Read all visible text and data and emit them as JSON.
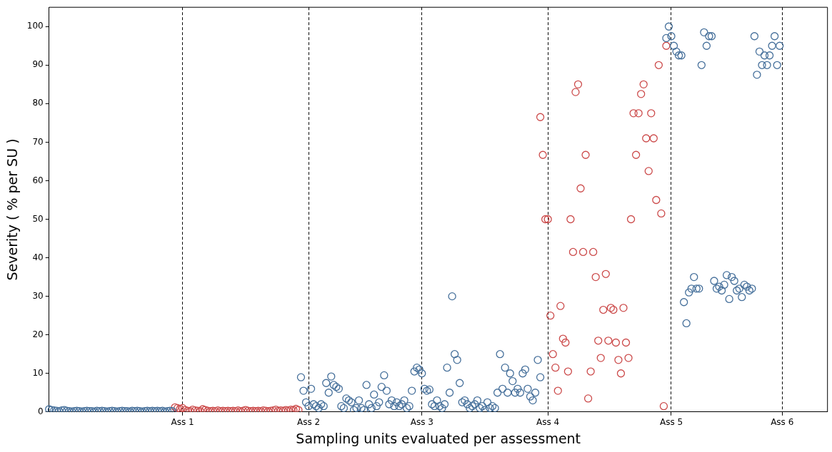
{
  "chart_data": {
    "type": "scatter",
    "xlabel": "Sampling units evaluated per assessment",
    "ylabel": "Severity ( % per SU )",
    "categories": [
      null,
      null,
      null,
      null,
      null,
      null,
      null,
      null,
      null,
      null,
      null,
      null,
      null,
      null,
      null,
      null,
      null,
      null,
      null,
      null,
      null,
      null,
      null,
      null,
      null,
      null,
      null,
      null,
      null,
      null,
      null,
      null,
      null,
      null,
      null,
      null,
      null,
      null,
      null,
      null,
      null,
      null,
      null,
      null,
      null,
      null,
      null,
      null,
      null,
      null,
      null,
      null,
      null,
      "Ass 1",
      null,
      null,
      null,
      null,
      null,
      null,
      null,
      null,
      null,
      null,
      null,
      null,
      null,
      null,
      null,
      null,
      null,
      null,
      null,
      null,
      null,
      null,
      null,
      null,
      null,
      null,
      null,
      null,
      null,
      null,
      null,
      null,
      null,
      null,
      null,
      null,
      null,
      null,
      null,
      null,
      null,
      null,
      null,
      null,
      null,
      null,
      null,
      null,
      null,
      "Ass 2",
      null,
      null,
      null,
      null,
      null,
      null,
      null,
      null,
      null,
      null,
      null,
      null,
      null,
      null,
      null,
      null,
      null,
      null,
      null,
      null,
      null,
      null,
      null,
      null,
      null,
      null,
      null,
      null,
      null,
      null,
      null,
      null,
      null,
      null,
      null,
      null,
      null,
      null,
      null,
      null,
      null,
      null,
      null,
      null,
      "Ass 3",
      null,
      null,
      null,
      null,
      null,
      null,
      null,
      null,
      null,
      null,
      null,
      null,
      null,
      null,
      null,
      null,
      null,
      null,
      null,
      null,
      null,
      null,
      null,
      null,
      null,
      null,
      null,
      null,
      null,
      null,
      null,
      null,
      null,
      null,
      null,
      null,
      null,
      null,
      null,
      null,
      null,
      null,
      null,
      null,
      null,
      null,
      null,
      null,
      null,
      "Ass 4",
      null,
      null,
      null,
      null,
      null,
      null,
      null,
      null,
      null,
      null,
      null,
      null,
      null,
      null,
      null,
      null,
      null,
      null,
      null,
      null,
      null,
      null,
      null,
      null,
      null,
      null,
      null,
      null,
      null,
      null,
      null,
      null,
      null,
      null,
      null,
      null,
      null,
      null,
      null,
      null,
      null,
      null,
      null,
      null,
      null,
      null,
      null,
      null,
      "Ass 5",
      null,
      null,
      null,
      null,
      null,
      null,
      null,
      null,
      null,
      null,
      null,
      null,
      null,
      null,
      null,
      null,
      null,
      null,
      null,
      null,
      null,
      null,
      null,
      null,
      null,
      null,
      null,
      null,
      null,
      null,
      null,
      null,
      null,
      null,
      null,
      null,
      null,
      null,
      null,
      null,
      null,
      null,
      null,
      "Ass 6",
      null,
      null,
      null,
      null,
      null,
      null,
      null,
      null,
      null,
      null,
      null,
      null,
      null,
      null,
      null,
      null,
      null,
      null
    ],
    "ylim": [
      0,
      105
    ],
    "yticks": [
      0,
      10,
      20,
      30,
      40,
      50,
      60,
      70,
      80,
      90,
      100
    ],
    "marker": "circle",
    "grid": "x",
    "series": [
      {
        "color": "#46709b",
        "values": [
          0.7,
          0.5,
          0.4,
          0.3,
          0.2,
          0.4,
          0.5,
          0.3,
          0.2,
          0.1,
          0.2,
          0.3,
          0.2,
          0.1,
          0.2,
          0.3,
          0.2,
          0.2,
          0.1,
          0.3,
          0.2,
          0.3,
          0.2,
          0.1,
          0.2,
          0.3,
          0.2,
          0.1,
          0.2,
          0.3,
          0.2,
          0.2,
          0.1,
          0.3,
          0.2,
          0.3,
          0.2,
          0.1,
          0.2,
          0.3,
          0.2,
          0.3,
          0.2,
          0.3,
          0.2,
          0.3,
          0.1,
          0.2,
          0.3,
          0.2,
          null,
          null,
          null,
          null,
          null,
          null,
          null,
          null,
          null,
          null,
          null,
          null,
          null,
          null,
          null,
          null,
          null,
          null,
          null,
          null,
          null,
          null,
          null,
          null,
          null,
          null,
          null,
          null,
          null,
          null,
          null,
          null,
          null,
          null,
          null,
          null,
          null,
          null,
          null,
          null,
          null,
          null,
          null,
          null,
          null,
          null,
          null,
          null,
          null,
          null,
          9,
          5.5,
          2.5,
          1.5,
          6,
          2,
          1.5,
          1,
          2,
          1.5,
          7.5,
          5,
          9.2,
          7,
          6.5,
          6,
          1.5,
          1,
          3.5,
          3,
          2.5,
          0.5,
          1,
          3,
          1,
          0.5,
          7,
          2,
          1,
          4.5,
          1.5,
          2.5,
          6.5,
          9.5,
          5.5,
          2,
          3,
          1.5,
          2.5,
          1.5,
          2,
          3,
          1,
          1.5,
          5.5,
          10.5,
          11.5,
          11,
          10,
          6,
          5.5,
          5.8,
          2,
          1.5,
          3,
          1.5,
          1,
          2,
          11.5,
          5,
          30,
          15,
          13.5,
          7.5,
          2.5,
          3,
          2,
          1,
          1.5,
          2,
          3,
          1,
          1.5,
          0.5,
          2.5,
          1,
          1.5,
          1,
          5,
          15,
          6,
          11.5,
          5,
          10,
          8,
          5,
          6,
          5,
          10,
          11,
          6,
          4,
          3,
          5,
          13.5,
          9,
          null,
          null,
          null,
          null,
          null,
          null,
          null,
          null,
          null,
          null,
          null,
          null,
          null,
          null,
          null,
          null,
          null,
          null,
          null,
          null,
          null,
          null,
          null,
          null,
          null,
          null,
          null,
          null,
          null,
          null,
          null,
          null,
          null,
          null,
          null,
          null,
          null,
          null,
          null,
          null,
          null,
          null,
          null,
          null,
          null,
          null,
          null,
          null,
          null,
          97,
          100,
          97.5,
          95,
          93.5,
          92.5,
          92.5,
          28.5,
          23,
          31,
          32,
          35,
          32,
          32,
          90,
          98.5,
          95,
          97.5,
          97.5,
          34,
          32,
          32.5,
          31.5,
          33,
          35.5,
          29.3,
          35,
          34,
          31.5,
          32,
          29.8,
          33,
          32.5,
          31.5,
          32,
          97.5,
          87.5,
          93.5,
          90,
          92.5,
          90,
          92.5,
          95,
          97.5,
          90,
          95,
          null,
          null,
          null,
          null,
          null,
          null,
          null,
          null,
          null,
          null,
          null,
          null,
          null,
          null,
          null,
          null,
          null,
          null,
          null
        ]
      },
      {
        "color": "#cc4b4b",
        "values": [
          null,
          null,
          null,
          null,
          null,
          null,
          null,
          null,
          null,
          null,
          null,
          null,
          null,
          null,
          null,
          null,
          null,
          null,
          null,
          null,
          null,
          null,
          null,
          null,
          null,
          null,
          null,
          null,
          null,
          null,
          null,
          null,
          null,
          null,
          null,
          null,
          null,
          null,
          null,
          null,
          null,
          null,
          null,
          null,
          null,
          null,
          null,
          null,
          null,
          null,
          1.2,
          1,
          0.8,
          1,
          0.5,
          0.3,
          0.2,
          0.6,
          0.4,
          0.3,
          0.2,
          0.7,
          0.5,
          0.3,
          0.2,
          0.3,
          0.2,
          0.4,
          0.2,
          0.3,
          0.2,
          0.3,
          0.2,
          0.3,
          0.2,
          0.4,
          0.2,
          0.3,
          0.5,
          0.3,
          0.2,
          0.3,
          0.2,
          0.3,
          0.2,
          0.4,
          0.3,
          0.2,
          0.3,
          0.4,
          0.6,
          0.3,
          0.4,
          0.3,
          0.5,
          0.4,
          0.6,
          0.5,
          0.8,
          0.5,
          null,
          null,
          null,
          null,
          null,
          null,
          null,
          null,
          null,
          null,
          null,
          null,
          null,
          null,
          null,
          null,
          null,
          null,
          null,
          null,
          null,
          null,
          null,
          null,
          null,
          null,
          null,
          null,
          null,
          null,
          null,
          null,
          null,
          null,
          null,
          null,
          null,
          null,
          null,
          null,
          null,
          null,
          null,
          null,
          null,
          null,
          null,
          null,
          null,
          null,
          null,
          null,
          null,
          null,
          null,
          null,
          null,
          null,
          null,
          null,
          null,
          null,
          null,
          null,
          null,
          null,
          null,
          null,
          null,
          null,
          null,
          null,
          null,
          null,
          null,
          null,
          null,
          null,
          null,
          null,
          null,
          null,
          null,
          null,
          null,
          null,
          null,
          null,
          null,
          null,
          null,
          null,
          null,
          null,
          null,
          76.5,
          66.7,
          50,
          50,
          25,
          15,
          11.5,
          5.5,
          27.5,
          19,
          18,
          10.5,
          50,
          41.5,
          83,
          85,
          58,
          41.5,
          66.7,
          3.5,
          10.5,
          41.5,
          35,
          18.5,
          14,
          26.5,
          35.8,
          18.5,
          27,
          26.5,
          18,
          13.5,
          10,
          27,
          18,
          14,
          50,
          77.5,
          66.7,
          77.5,
          82.5,
          85,
          71,
          62.5,
          77.5,
          71,
          55,
          90,
          51.5,
          1.5,
          95,
          null,
          null,
          null,
          null,
          null,
          null,
          null,
          null,
          null,
          null,
          null,
          null,
          null,
          null,
          null,
          null,
          null,
          null,
          null,
          null,
          null,
          null,
          null,
          null,
          null,
          null,
          null,
          null,
          null,
          null,
          null,
          null,
          null,
          null,
          null,
          null,
          null,
          null,
          null,
          null,
          null,
          null,
          null,
          null,
          null,
          null,
          null,
          null,
          null,
          null,
          null,
          null,
          null,
          null,
          null,
          null,
          null,
          null,
          null,
          null,
          null,
          null,
          null,
          null
        ]
      }
    ]
  }
}
